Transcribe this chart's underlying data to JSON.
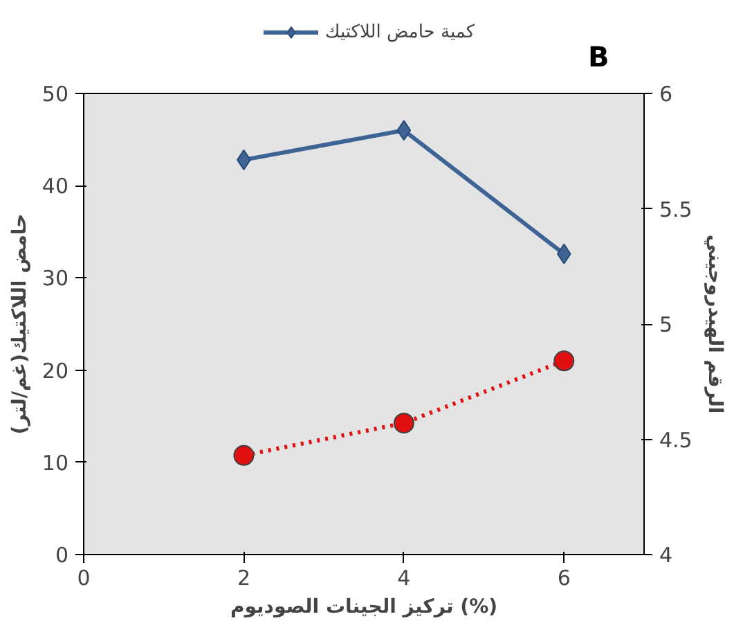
{
  "chart_data": {
    "type": "line",
    "xlabel": "تركيز الجينات الصوديوم (%)",
    "ylabel": "حامض اللاكتيك(غم/لتر)",
    "y2label": "الرقم الهيدروجيني",
    "annotations": [
      "B"
    ],
    "x": [
      2,
      4,
      6
    ],
    "series": [
      {
        "name": "كمية حامض اللاكتيك",
        "color": "#3e6496",
        "values": [
          42.8,
          46,
          32.6
        ],
        "marker": "diamond",
        "line_style": "solid"
      },
      {
        "color": "#e01010",
        "values": [
          4.43,
          4.57,
          4.84
        ],
        "axis": "y2",
        "marker": "circle",
        "line_style": "dotted"
      }
    ],
    "xlim": [
      0,
      7
    ],
    "xticks": [
      0,
      2,
      4,
      6
    ],
    "ylim": [
      0,
      50
    ],
    "yticks": [
      0,
      10,
      20,
      30,
      40,
      50
    ],
    "y2lim": [
      4,
      6
    ],
    "y2ticks": [
      4,
      4.5,
      5,
      5.5,
      6
    ],
    "grid": false,
    "legend": "top"
  }
}
